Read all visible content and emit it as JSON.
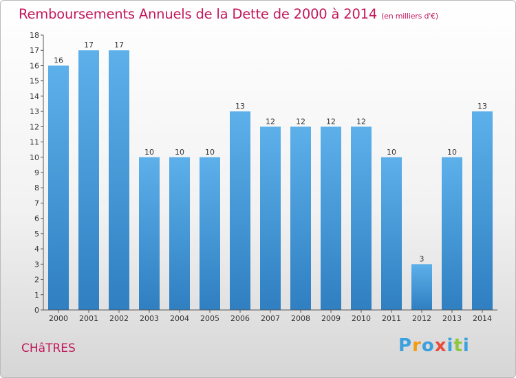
{
  "header": {
    "title": "Remboursements Annuels de la Dette de 2000 à 2014",
    "unit": "(en milliers d'€)"
  },
  "footer": {
    "commune": "CHâTRES",
    "logo_letters": [
      "P",
      "r",
      "o",
      "x",
      "i",
      "t",
      "i"
    ],
    "logo_colors": [
      "#3aa0de",
      "#f39c12",
      "#3aa0de",
      "#e74c3c",
      "#3aa0de",
      "#8dc63f",
      "#3aa0de"
    ]
  },
  "chart_data": {
    "type": "bar",
    "title": "Remboursements Annuels de la Dette de 2000 à 2014",
    "subtitle": "(en milliers d'€)",
    "xlabel": "",
    "ylabel": "",
    "categories": [
      "2000",
      "2001",
      "2002",
      "2003",
      "2004",
      "2005",
      "2006",
      "2007",
      "2008",
      "2009",
      "2010",
      "2011",
      "2012",
      "2013",
      "2014"
    ],
    "values": [
      16,
      17,
      17,
      10,
      10,
      10,
      13,
      12,
      12,
      12,
      12,
      10,
      3,
      10,
      13
    ],
    "ylim": [
      0,
      18
    ],
    "yticks": [
      "0",
      "1",
      "2",
      "3",
      "4",
      "5",
      "6",
      "7",
      "8",
      "9",
      "10",
      "11",
      "12",
      "13",
      "14",
      "15",
      "16",
      "17",
      "18"
    ],
    "grid": false,
    "legend": "none",
    "bar_color_top": "#5db0ea",
    "bar_color_bottom": "#2f7fc1"
  }
}
